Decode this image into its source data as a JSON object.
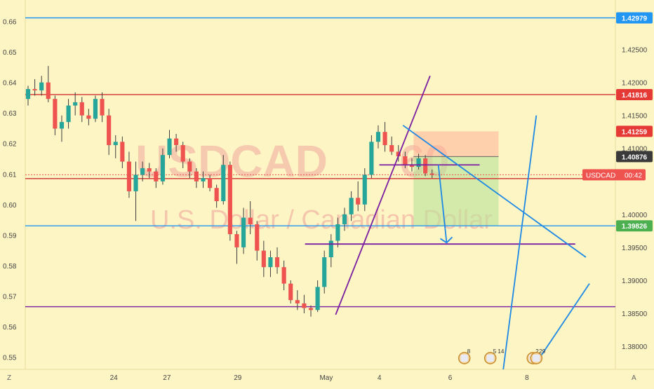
{
  "chart_data": {
    "type": "candlestick",
    "symbol": "USDCAD",
    "interval_glyph": "60",
    "watermark_title": "USDCAD",
    "watermark_subtitle": "U.S. Dollar / Canadian Dollar",
    "price_scale": {
      "range": [
        1.3765,
        1.4325
      ],
      "ticks": [
        "1.42500",
        "1.42000",
        "1.41500",
        "1.41000",
        "1.40000",
        "1.39500",
        "1.39000",
        "1.38500",
        "1.38000"
      ]
    },
    "left_scale": {
      "range": [
        0.546,
        0.667
      ],
      "ticks": [
        "0.66",
        "0.65",
        "0.64",
        "0.63",
        "0.62",
        "0.61",
        "0.60",
        "0.59",
        "0.58",
        "0.57",
        "0.56",
        "0.55"
      ]
    },
    "time_scale": {
      "range": [
        0,
        50
      ],
      "labels": [
        {
          "t": 7.5,
          "text": "24"
        },
        {
          "t": 12.0,
          "text": "27"
        },
        {
          "t": 18.0,
          "text": "29"
        },
        {
          "t": 25.5,
          "text": "May"
        },
        {
          "t": 30.0,
          "text": "4"
        },
        {
          "t": 36.0,
          "text": "6"
        },
        {
          "t": 42.5,
          "text": "8"
        }
      ]
    },
    "price_labels": [
      {
        "value": 1.42979,
        "text": "1.42979",
        "color": "#2196f3"
      },
      {
        "value": 1.41816,
        "text": "1.41816",
        "color": "#e53935"
      },
      {
        "value": 1.41259,
        "text": "1.41259",
        "color": "#e53935"
      },
      {
        "value": 1.40876,
        "text": "1.40876",
        "color": "#3a3a3a"
      },
      {
        "value": 1.39826,
        "text": "1.39826",
        "color": "#4caf50"
      }
    ],
    "current_price": {
      "value": 1.406,
      "symbol": "USDCAD",
      "countdown": "00:42",
      "color": "#ef5350"
    },
    "candles": [
      [
        1.4175,
        1.4195,
        1.4165,
        1.419
      ],
      [
        1.419,
        1.4205,
        1.418,
        1.4188
      ],
      [
        1.4188,
        1.421,
        1.418,
        1.42
      ],
      [
        1.42,
        1.4225,
        1.417,
        1.4175
      ],
      [
        1.4175,
        1.418,
        1.412,
        1.413
      ],
      [
        1.413,
        1.415,
        1.411,
        1.414
      ],
      [
        1.414,
        1.4175,
        1.413,
        1.4165
      ],
      [
        1.4165,
        1.4185,
        1.415,
        1.417
      ],
      [
        1.417,
        1.4178,
        1.414,
        1.415
      ],
      [
        1.415,
        1.416,
        1.4135,
        1.4145
      ],
      [
        1.4145,
        1.418,
        1.414,
        1.4175
      ],
      [
        1.4175,
        1.4185,
        1.414,
        1.415
      ],
      [
        1.415,
        1.416,
        1.409,
        1.4105
      ],
      [
        1.4105,
        1.412,
        1.4085,
        1.411
      ],
      [
        1.411,
        1.4118,
        1.407,
        1.408
      ],
      [
        1.408,
        1.4095,
        1.4025,
        1.4035
      ],
      [
        1.4035,
        1.408,
        1.399,
        1.406
      ],
      [
        1.406,
        1.408,
        1.405,
        1.407
      ],
      [
        1.407,
        1.4078,
        1.4055,
        1.4065
      ],
      [
        1.4065,
        1.407,
        1.404,
        1.405
      ],
      [
        1.405,
        1.41,
        1.4045,
        1.409
      ],
      [
        1.409,
        1.4128,
        1.4085,
        1.4115
      ],
      [
        1.4115,
        1.4122,
        1.4095,
        1.4105
      ],
      [
        1.4105,
        1.411,
        1.407,
        1.408
      ],
      [
        1.408,
        1.4085,
        1.4055,
        1.4065
      ],
      [
        1.4065,
        1.407,
        1.404,
        1.405
      ],
      [
        1.405,
        1.4065,
        1.404,
        1.4055
      ],
      [
        1.4055,
        1.406,
        1.4035,
        1.404
      ],
      [
        1.404,
        1.4045,
        1.401,
        1.402
      ],
      [
        1.402,
        1.409,
        1.4015,
        1.4075
      ],
      [
        1.4075,
        1.408,
        1.396,
        1.397
      ],
      [
        1.397,
        1.3975,
        1.3925,
        1.395
      ],
      [
        1.395,
        1.401,
        1.394,
        1.3995
      ],
      [
        1.3995,
        1.402,
        1.397,
        1.3985
      ],
      [
        1.3985,
        1.399,
        1.393,
        1.3945
      ],
      [
        1.3945,
        1.396,
        1.3905,
        1.392
      ],
      [
        1.392,
        1.3945,
        1.3905,
        1.3935
      ],
      [
        1.3935,
        1.395,
        1.391,
        1.392
      ],
      [
        1.392,
        1.393,
        1.3885,
        1.3895
      ],
      [
        1.3895,
        1.39,
        1.3865,
        1.387
      ],
      [
        1.387,
        1.3885,
        1.3855,
        1.3865
      ],
      [
        1.3865,
        1.3878,
        1.385,
        1.3858
      ],
      [
        1.3858,
        1.3862,
        1.3845,
        1.3855
      ],
      [
        1.3855,
        1.39,
        1.3852,
        1.389
      ],
      [
        1.389,
        1.3945,
        1.388,
        1.3935
      ],
      [
        1.3935,
        1.397,
        1.392,
        1.396
      ],
      [
        1.396,
        1.3995,
        1.395,
        1.3985
      ],
      [
        1.3985,
        1.401,
        1.3975,
        1.4
      ],
      [
        1.4,
        1.4035,
        1.399,
        1.4025
      ],
      [
        1.4025,
        1.405,
        1.4005,
        1.4015
      ],
      [
        1.4015,
        1.407,
        1.4005,
        1.406
      ],
      [
        1.406,
        1.412,
        1.4055,
        1.411
      ],
      [
        1.411,
        1.4135,
        1.41,
        1.4125
      ],
      [
        1.4125,
        1.414,
        1.4095,
        1.4105
      ],
      [
        1.4105,
        1.4118,
        1.409,
        1.4095
      ],
      [
        1.4095,
        1.4105,
        1.408,
        1.4088
      ],
      [
        1.4088,
        1.4095,
        1.407,
        1.4075
      ],
      [
        1.4075,
        1.4085,
        1.4065,
        1.4072
      ],
      [
        1.4072,
        1.4092,
        1.4068,
        1.4085
      ],
      [
        1.4085,
        1.409,
        1.4058,
        1.4062
      ],
      [
        1.4062,
        1.4068,
        1.4055,
        1.406
      ]
    ],
    "horizontal_lines": [
      {
        "value": 1.42979,
        "color": "#2196f3"
      },
      {
        "value": 1.41816,
        "color": "#d32f2f"
      },
      {
        "value": 1.39826,
        "color": "#2196f3"
      },
      {
        "value": 1.386,
        "color": "#7b1fa2"
      },
      {
        "value": 1.0608,
        "scale": "left",
        "color": "#d32f2f"
      }
    ],
    "drawings": [
      {
        "kind": "segment",
        "color": "#7b1fa2",
        "from": {
          "t": 26.3,
          "v": 1.3848
        },
        "to": {
          "t": 34.3,
          "v": 1.421
        }
      },
      {
        "kind": "segment",
        "color": "#7b1fa2",
        "from": {
          "t": 30.0,
          "v": 1.4075
        },
        "to": {
          "t": 38.5,
          "v": 1.4075
        }
      },
      {
        "kind": "segment",
        "color": "#7b1fa2",
        "from": {
          "t": 23.7,
          "v": 1.3955
        },
        "to": {
          "t": 46.6,
          "v": 1.3955
        }
      },
      {
        "kind": "segment",
        "color": "#1e88e5",
        "from": {
          "t": 32.0,
          "v": 1.4135
        },
        "to": {
          "t": 47.5,
          "v": 1.3935
        }
      },
      {
        "kind": "segment",
        "color": "#1e88e5",
        "from": {
          "t": 35.0,
          "v": 1.4075
        },
        "to": {
          "t": 35.7,
          "v": 1.3957
        }
      },
      {
        "kind": "segment",
        "color": "#1e88e5",
        "from": {
          "t": 40.5,
          "v": 1.3765
        },
        "to": {
          "t": 43.3,
          "v": 1.415
        }
      },
      {
        "kind": "segment",
        "color": "#1e88e5",
        "from": {
          "t": 43.3,
          "v": 1.3775
        },
        "to": {
          "t": 47.8,
          "v": 1.3895
        }
      }
    ],
    "position_box": {
      "t0": 32.9,
      "t1": 40.1,
      "entry": 1.40876,
      "stop": 1.41259,
      "target": 1.39826
    },
    "events": [
      {
        "t": 37.2,
        "label": "8"
      },
      {
        "t": 39.4,
        "label": "5 14"
      },
      {
        "t": 43.0,
        "label": "2"
      },
      {
        "t": 43.3,
        "label": "29"
      }
    ],
    "corner_labels": {
      "left": "Z",
      "right": "A"
    }
  }
}
